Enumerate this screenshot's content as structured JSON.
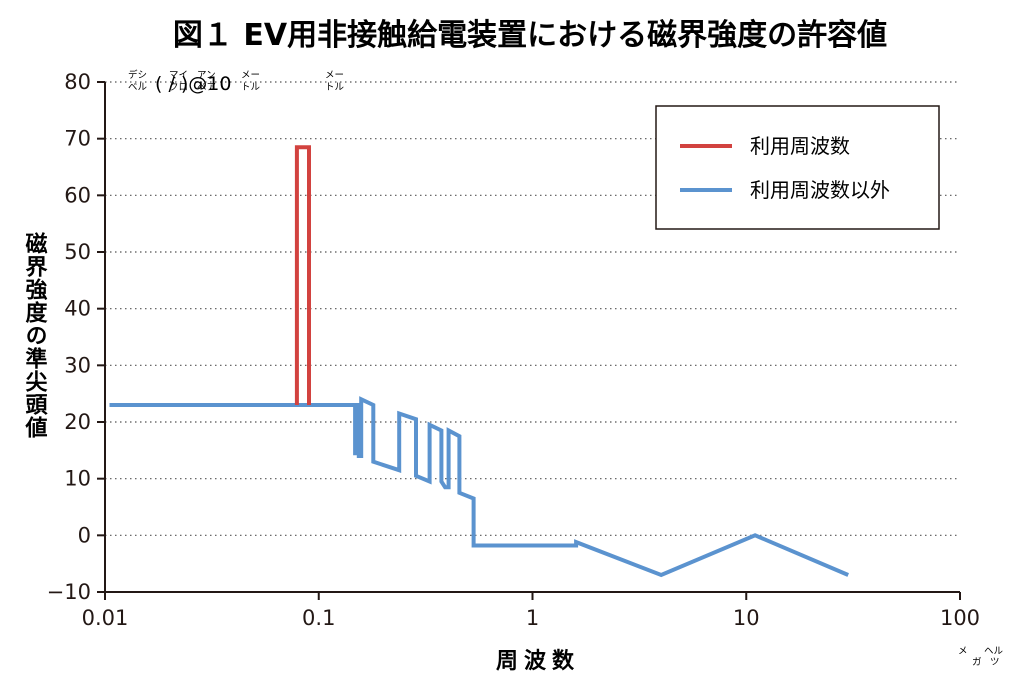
{
  "chart_data": {
    "type": "line",
    "title": "図１ EV用非接触給電装置における磁界強度の許容値",
    "ylabel": "磁界強度の準尖頭値",
    "xlabel": "周波数",
    "y_unit": {
      "text": "(    /     )@10",
      "ruby": [
        "デシ",
        "ベル",
        "マイ",
        "クロ",
        "アン",
        "ペア",
        "メー",
        "トル",
        "メー",
        "トル"
      ]
    },
    "x_unit": {
      "ruby": [
        "メ",
        "ヘル",
        "ガ",
        "ツ"
      ]
    },
    "x_scale": "log",
    "xlim": [
      0.01,
      100
    ],
    "ylim": [
      -10,
      80
    ],
    "x_ticks": [
      0.01,
      0.1,
      1,
      10,
      100
    ],
    "x_tick_labels": [
      "0.01",
      "0.1",
      "1",
      "10",
      "100"
    ],
    "y_ticks": [
      80,
      70,
      60,
      50,
      40,
      30,
      20,
      10,
      0,
      -10
    ],
    "y_tick_labels": [
      "80",
      "70",
      "60",
      "50",
      "40",
      "30",
      "20",
      "10",
      "0",
      "−10"
    ],
    "grid": "horizontal dotted",
    "legend_position": "top-right",
    "series": [
      {
        "name": "利用周波数",
        "color": "#d2423f",
        "points": [
          [
            0.079,
            23
          ],
          [
            0.079,
            68.5
          ],
          [
            0.09,
            68.5
          ],
          [
            0.09,
            23
          ]
        ]
      },
      {
        "name": "利用周波数以外",
        "color": "#5b93cf",
        "points": [
          [
            0.0105,
            23
          ],
          [
            0.079,
            23
          ],
          [
            0.09,
            23
          ],
          [
            0.148,
            23
          ],
          [
            0.148,
            14.5
          ],
          [
            0.152,
            14.5
          ],
          [
            0.152,
            23
          ],
          [
            0.154,
            23
          ],
          [
            0.154,
            14
          ],
          [
            0.158,
            14
          ],
          [
            0.158,
            24
          ],
          [
            0.18,
            23
          ],
          [
            0.18,
            13
          ],
          [
            0.238,
            11.5
          ],
          [
            0.238,
            21.5
          ],
          [
            0.285,
            20.5
          ],
          [
            0.285,
            10.5
          ],
          [
            0.33,
            9.5
          ],
          [
            0.33,
            19.5
          ],
          [
            0.375,
            18.5
          ],
          [
            0.375,
            9.5
          ],
          [
            0.39,
            8.5
          ],
          [
            0.39,
            8.5
          ],
          [
            0.405,
            8.5
          ],
          [
            0.405,
            18.5
          ],
          [
            0.455,
            17.5
          ],
          [
            0.455,
            7.5
          ],
          [
            0.53,
            6.5
          ],
          [
            0.53,
            -1.8
          ],
          [
            1.6,
            -1.8
          ],
          [
            1.6,
            -1.2
          ],
          [
            4.0,
            -7
          ],
          [
            11.0,
            0
          ],
          [
            30.0,
            -7
          ]
        ]
      }
    ]
  }
}
